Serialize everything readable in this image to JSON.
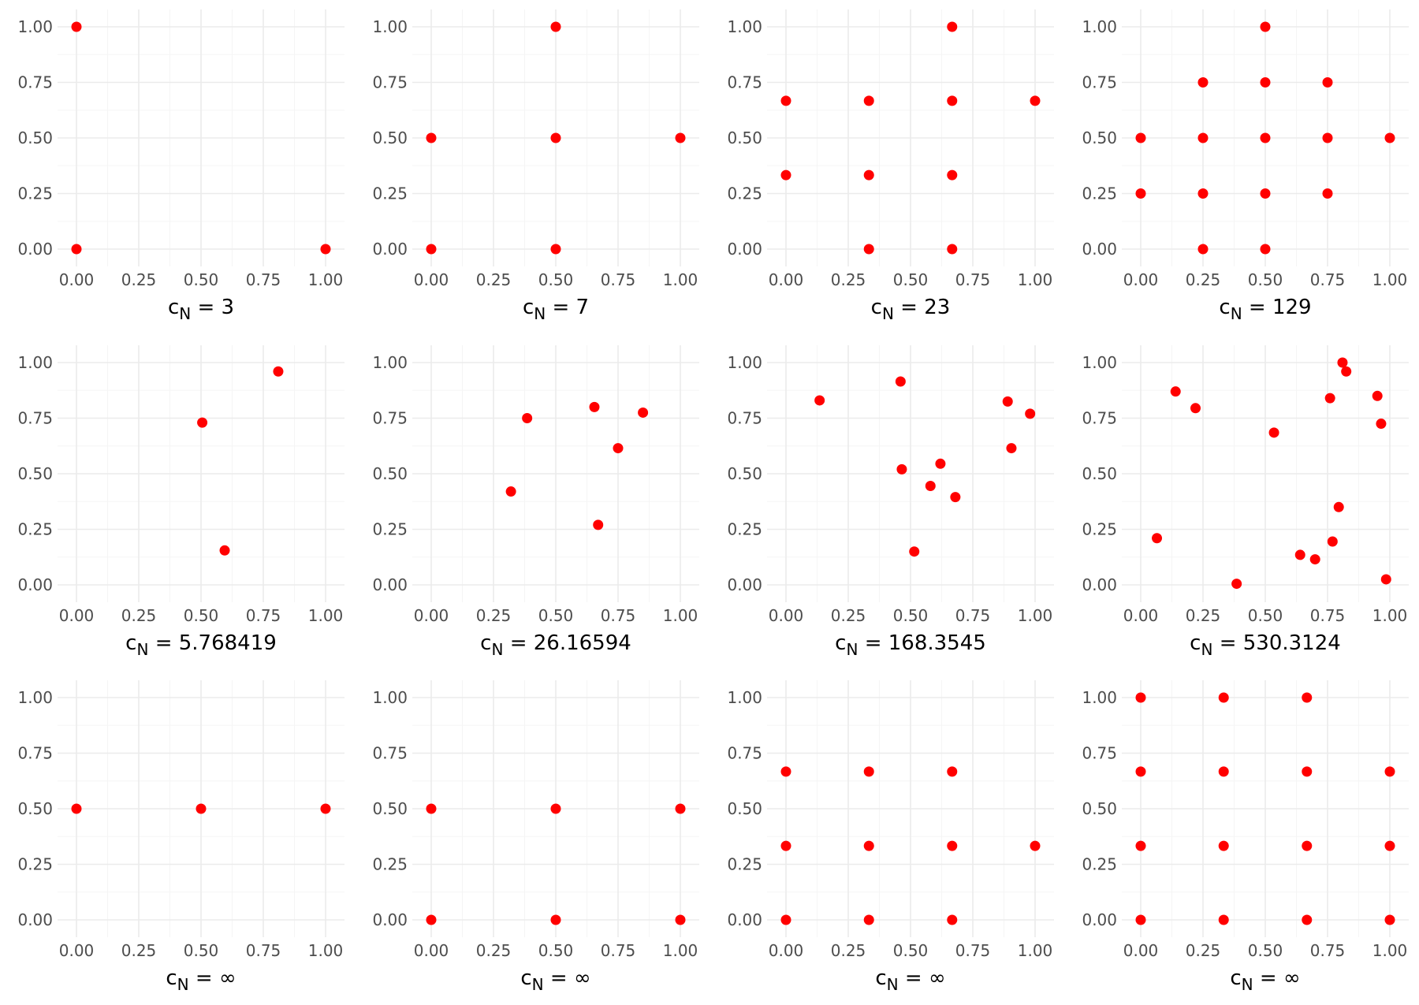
{
  "colors": {
    "point": "#ff0000",
    "grid_major": "#ebebeb",
    "grid_minor": "#f5f5f5",
    "tick_text": "#4d4d4d"
  },
  "chart_data": [
    {
      "type": "scatter",
      "caption_main": "c",
      "caption_sub": "N",
      "caption_value": " = 3",
      "xlim": [
        0,
        1
      ],
      "ylim": [
        0,
        1
      ],
      "xticks": [
        "0.00",
        "0.25",
        "0.50",
        "0.75",
        "1.00"
      ],
      "yticks": [
        "0.00",
        "0.25",
        "0.50",
        "0.75",
        "1.00"
      ],
      "points": [
        [
          0,
          1
        ],
        [
          0,
          0
        ],
        [
          1,
          0
        ]
      ]
    },
    {
      "type": "scatter",
      "caption_main": "c",
      "caption_sub": "N",
      "caption_value": " = 7",
      "xlim": [
        0,
        1
      ],
      "ylim": [
        0,
        1
      ],
      "xticks": [
        "0.00",
        "0.25",
        "0.50",
        "0.75",
        "1.00"
      ],
      "yticks": [
        "0.00",
        "0.25",
        "0.50",
        "0.75",
        "1.00"
      ],
      "points": [
        [
          0.5,
          1
        ],
        [
          0,
          0.5
        ],
        [
          0.5,
          0.5
        ],
        [
          1,
          0.5
        ],
        [
          0,
          0
        ],
        [
          0.5,
          0
        ]
      ]
    },
    {
      "type": "scatter",
      "caption_main": "c",
      "caption_sub": "N",
      "caption_value": " = 23",
      "xlim": [
        0,
        1
      ],
      "ylim": [
        0,
        1
      ],
      "xticks": [
        "0.00",
        "0.25",
        "0.50",
        "0.75",
        "1.00"
      ],
      "yticks": [
        "0.00",
        "0.25",
        "0.50",
        "0.75",
        "1.00"
      ],
      "points": [
        [
          0.667,
          1
        ],
        [
          0,
          0.667
        ],
        [
          0.333,
          0.667
        ],
        [
          0.667,
          0.667
        ],
        [
          1,
          0.667
        ],
        [
          0,
          0.333
        ],
        [
          0.333,
          0.333
        ],
        [
          0.667,
          0.333
        ],
        [
          0.333,
          0
        ],
        [
          0.667,
          0
        ]
      ]
    },
    {
      "type": "scatter",
      "caption_main": "c",
      "caption_sub": "N",
      "caption_value": " = 129",
      "xlim": [
        0,
        1
      ],
      "ylim": [
        0,
        1
      ],
      "xticks": [
        "0.00",
        "0.25",
        "0.50",
        "0.75",
        "1.00"
      ],
      "yticks": [
        "0.00",
        "0.25",
        "0.50",
        "0.75",
        "1.00"
      ],
      "points": [
        [
          0.5,
          1
        ],
        [
          0.25,
          0.75
        ],
        [
          0.5,
          0.75
        ],
        [
          0.75,
          0.75
        ],
        [
          0,
          0.5
        ],
        [
          0.25,
          0.5
        ],
        [
          0.5,
          0.5
        ],
        [
          0.75,
          0.5
        ],
        [
          1,
          0.5
        ],
        [
          0,
          0.25
        ],
        [
          0.25,
          0.25
        ],
        [
          0.5,
          0.25
        ],
        [
          0.75,
          0.25
        ],
        [
          0.25,
          0
        ],
        [
          0.5,
          0
        ]
      ]
    },
    {
      "type": "scatter",
      "caption_main": "c",
      "caption_sub": "N",
      "caption_value": " = 5.768419",
      "xlim": [
        0,
        1
      ],
      "ylim": [
        0,
        1
      ],
      "xticks": [
        "0.00",
        "0.25",
        "0.50",
        "0.75",
        "1.00"
      ],
      "yticks": [
        "0.00",
        "0.25",
        "0.50",
        "0.75",
        "1.00"
      ],
      "points": [
        [
          0.81,
          0.96
        ],
        [
          0.505,
          0.73
        ],
        [
          0.595,
          0.155
        ]
      ]
    },
    {
      "type": "scatter",
      "caption_main": "c",
      "caption_sub": "N",
      "caption_value": " = 26.16594",
      "xlim": [
        0,
        1
      ],
      "ylim": [
        0,
        1
      ],
      "xticks": [
        "0.00",
        "0.25",
        "0.50",
        "0.75",
        "1.00"
      ],
      "yticks": [
        "0.00",
        "0.25",
        "0.50",
        "0.75",
        "1.00"
      ],
      "points": [
        [
          0.655,
          0.8
        ],
        [
          0.85,
          0.775
        ],
        [
          0.385,
          0.75
        ],
        [
          0.75,
          0.615
        ],
        [
          0.32,
          0.42
        ],
        [
          0.67,
          0.27
        ]
      ]
    },
    {
      "type": "scatter",
      "caption_main": "c",
      "caption_sub": "N",
      "caption_value": " = 168.3545",
      "xlim": [
        0,
        1
      ],
      "ylim": [
        0,
        1
      ],
      "xticks": [
        "0.00",
        "0.25",
        "0.50",
        "0.75",
        "1.00"
      ],
      "yticks": [
        "0.00",
        "0.25",
        "0.50",
        "0.75",
        "1.00"
      ],
      "points": [
        [
          0.46,
          0.915
        ],
        [
          0.135,
          0.83
        ],
        [
          0.89,
          0.825
        ],
        [
          0.98,
          0.77
        ],
        [
          0.905,
          0.615
        ],
        [
          0.62,
          0.545
        ],
        [
          0.465,
          0.52
        ],
        [
          0.58,
          0.445
        ],
        [
          0.68,
          0.395
        ],
        [
          0.515,
          0.15
        ]
      ]
    },
    {
      "type": "scatter",
      "caption_main": "c",
      "caption_sub": "N",
      "caption_value": " = 530.3124",
      "xlim": [
        0,
        1
      ],
      "ylim": [
        0,
        1
      ],
      "xticks": [
        "0.00",
        "0.25",
        "0.50",
        "0.75",
        "1.00"
      ],
      "yticks": [
        "0.00",
        "0.25",
        "0.50",
        "0.75",
        "1.00"
      ],
      "points": [
        [
          0.81,
          1
        ],
        [
          0.825,
          0.96
        ],
        [
          0.14,
          0.87
        ],
        [
          0.95,
          0.85
        ],
        [
          0.76,
          0.84
        ],
        [
          0.22,
          0.795
        ],
        [
          0.965,
          0.725
        ],
        [
          0.535,
          0.685
        ],
        [
          0.795,
          0.35
        ],
        [
          0.065,
          0.21
        ],
        [
          0.77,
          0.195
        ],
        [
          0.64,
          0.135
        ],
        [
          0.7,
          0.115
        ],
        [
          0.985,
          0.025
        ],
        [
          0.385,
          0.005
        ]
      ]
    },
    {
      "type": "scatter",
      "caption_main": "c",
      "caption_sub": "N",
      "caption_value": " = ∞",
      "xlim": [
        0,
        1
      ],
      "ylim": [
        0,
        1
      ],
      "xticks": [
        "0.00",
        "0.25",
        "0.50",
        "0.75",
        "1.00"
      ],
      "yticks": [
        "0.00",
        "0.25",
        "0.50",
        "0.75",
        "1.00"
      ],
      "points": [
        [
          0,
          0.5
        ],
        [
          0.5,
          0.5
        ],
        [
          1,
          0.5
        ]
      ]
    },
    {
      "type": "scatter",
      "caption_main": "c",
      "caption_sub": "N",
      "caption_value": " = ∞",
      "xlim": [
        0,
        1
      ],
      "ylim": [
        0,
        1
      ],
      "xticks": [
        "0.00",
        "0.25",
        "0.50",
        "0.75",
        "1.00"
      ],
      "yticks": [
        "0.00",
        "0.25",
        "0.50",
        "0.75",
        "1.00"
      ],
      "points": [
        [
          0,
          0.5
        ],
        [
          0.5,
          0.5
        ],
        [
          1,
          0.5
        ],
        [
          0,
          0
        ],
        [
          0.5,
          0
        ],
        [
          1,
          0
        ]
      ]
    },
    {
      "type": "scatter",
      "caption_main": "c",
      "caption_sub": "N",
      "caption_value": " = ∞",
      "xlim": [
        0,
        1
      ],
      "ylim": [
        0,
        1
      ],
      "xticks": [
        "0.00",
        "0.25",
        "0.50",
        "0.75",
        "1.00"
      ],
      "yticks": [
        "0.00",
        "0.25",
        "0.50",
        "0.75",
        "1.00"
      ],
      "points": [
        [
          0,
          0.667
        ],
        [
          0.333,
          0.667
        ],
        [
          0.667,
          0.667
        ],
        [
          0,
          0.333
        ],
        [
          0.333,
          0.333
        ],
        [
          0.667,
          0.333
        ],
        [
          1,
          0.333
        ],
        [
          0,
          0
        ],
        [
          0.333,
          0
        ],
        [
          0.667,
          0
        ]
      ]
    },
    {
      "type": "scatter",
      "caption_main": "c",
      "caption_sub": "N",
      "caption_value": " = ∞",
      "xlim": [
        0,
        1
      ],
      "ylim": [
        0,
        1
      ],
      "xticks": [
        "0.00",
        "0.25",
        "0.50",
        "0.75",
        "1.00"
      ],
      "yticks": [
        "0.00",
        "0.25",
        "0.50",
        "0.75",
        "1.00"
      ],
      "points": [
        [
          0,
          1
        ],
        [
          0.333,
          1
        ],
        [
          0.667,
          1
        ],
        [
          0,
          0.667
        ],
        [
          0.333,
          0.667
        ],
        [
          0.667,
          0.667
        ],
        [
          1,
          0.667
        ],
        [
          0,
          0.333
        ],
        [
          0.333,
          0.333
        ],
        [
          0.667,
          0.333
        ],
        [
          1,
          0.333
        ],
        [
          0,
          0
        ],
        [
          0.333,
          0
        ],
        [
          0.667,
          0
        ],
        [
          1,
          0
        ]
      ]
    }
  ]
}
